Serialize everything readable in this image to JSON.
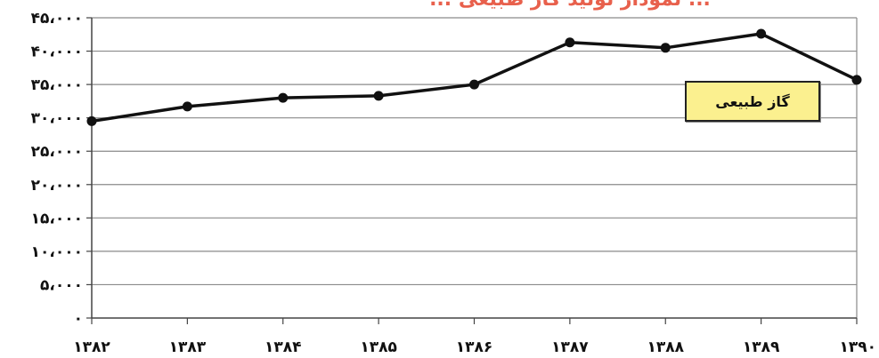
{
  "chart_data": {
    "type": "line",
    "title": "... نمودار تولید گاز طبیعی ...",
    "xlabel": "",
    "ylabel": "",
    "categories": [
      "۱۳۸۲",
      "۱۳۸۳",
      "۱۳۸۴",
      "۱۳۸۵",
      "۱۳۸۶",
      "۱۳۸۷",
      "۱۳۸۸",
      "۱۳۸۹",
      "۱۳۹۰"
    ],
    "y_ticks": [
      "۰",
      "۵،۰۰۰",
      "۱۰،۰۰۰",
      "۱۵،۰۰۰",
      "۲۰،۰۰۰",
      "۲۵،۰۰۰",
      "۳۰،۰۰۰",
      "۳۵،۰۰۰",
      "۴۰،۰۰۰",
      "۴۵،۰۰۰"
    ],
    "ylim": [
      0,
      45000
    ],
    "grid": true,
    "legend_position": "top-right",
    "series": [
      {
        "name": "گاز طبیعی",
        "color": "#111111",
        "values": [
          29500,
          31700,
          33000,
          33300,
          35000,
          41300,
          40500,
          42600,
          35700
        ]
      }
    ]
  }
}
